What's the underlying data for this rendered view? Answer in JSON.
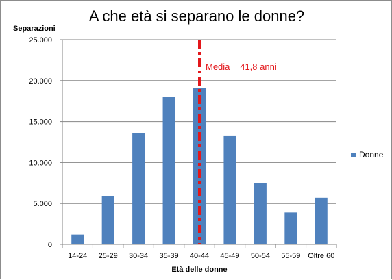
{
  "chart_data": {
    "type": "bar",
    "title": "A che età si separano le donne?",
    "ylabel": "Separazioni",
    "xlabel": "Età delle donne",
    "categories": [
      "14-24",
      "25-29",
      "30-34",
      "35-39",
      "40-44",
      "45-49",
      "50-54",
      "55-59",
      "Oltre 60"
    ],
    "series": [
      {
        "name": "Donne",
        "values": [
          1200,
          5900,
          13600,
          18000,
          19100,
          13300,
          7500,
          3900,
          5700
        ]
      }
    ],
    "ylim": [
      0,
      25000
    ],
    "yticks": [
      0,
      5000,
      10000,
      15000,
      20000,
      25000
    ],
    "ytick_labels": [
      "0",
      "5.000",
      "10.000",
      "15.000",
      "20.000",
      "25.000"
    ],
    "grid": true,
    "legend": "right",
    "bar_color": "#4f81bd",
    "annotation": {
      "label": "Media = 41,8 anni",
      "value": 41.8,
      "position_category": "40-44",
      "color": "#e3171b",
      "style": "dash-dot"
    }
  }
}
